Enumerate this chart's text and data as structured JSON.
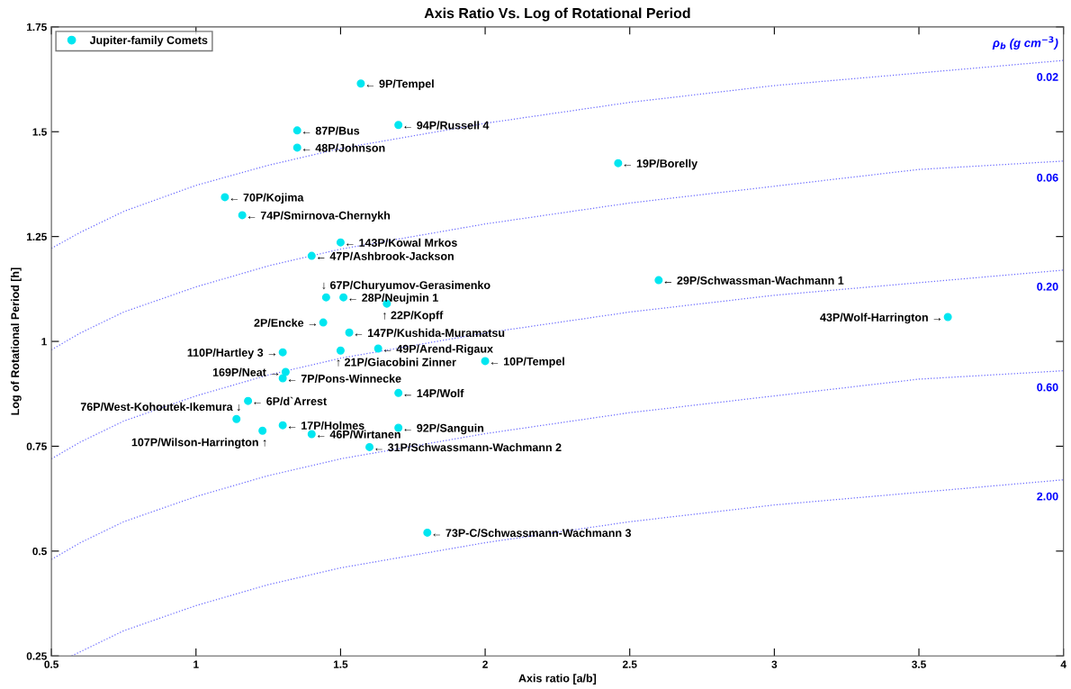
{
  "chart_data": {
    "type": "scatter",
    "title": "Axis Ratio Vs. Log of Rotational Period",
    "xlabel": "Axis ratio [a/b]",
    "ylabel": "Log of Rotational Period [h]",
    "xlim": [
      0.5,
      4
    ],
    "ylim": [
      0.25,
      1.75
    ],
    "xticks": [
      0.5,
      1,
      1.5,
      2,
      2.5,
      3,
      3.5,
      4
    ],
    "yticks": [
      0.25,
      0.5,
      0.75,
      1,
      1.25,
      1.5,
      1.75
    ],
    "grid": false,
    "legend": "top left",
    "series": [
      {
        "name": "Jupiter-family Comets",
        "marker": "circle",
        "color": "#00e6f0",
        "x": [
          1.57,
          1.35,
          1.7,
          1.35,
          2.46,
          1.1,
          1.16,
          1.5,
          1.4,
          2.6,
          1.45,
          1.51,
          1.66,
          3.6,
          1.44,
          1.53,
          1.3,
          1.5,
          1.63,
          2.0,
          1.31,
          1.3,
          1.7,
          1.18,
          1.14,
          1.3,
          1.7,
          1.23,
          1.4,
          1.6,
          1.8
        ],
        "values": [
          1.615,
          1.503,
          1.516,
          1.462,
          1.425,
          1.344,
          1.301,
          1.236,
          1.204,
          1.146,
          1.105,
          1.105,
          1.09,
          1.058,
          1.045,
          1.021,
          0.974,
          0.978,
          0.983,
          0.953,
          0.927,
          0.912,
          0.877,
          0.858,
          0.815,
          0.8,
          0.794,
          0.787,
          0.779,
          0.748,
          0.544
        ]
      },
      {
        "name": "0.02",
        "type": "line",
        "line_style": "dotted",
        "color": "#6b6bff",
        "x": [
          0.5,
          0.6,
          0.75,
          1,
          1.25,
          1.5,
          1.75,
          2,
          2.5,
          3,
          3.5,
          4
        ],
        "values": [
          1.222,
          1.26,
          1.31,
          1.372,
          1.42,
          1.46,
          1.49,
          1.52,
          1.57,
          1.61,
          1.64,
          1.67
        ]
      },
      {
        "name": "0.06",
        "type": "line",
        "line_style": "dotted",
        "color": "#6b6bff",
        "x": [
          0.5,
          0.6,
          0.75,
          1,
          1.25,
          1.5,
          1.75,
          2,
          2.5,
          3,
          3.5,
          4
        ],
        "values": [
          0.98,
          1.02,
          1.07,
          1.13,
          1.18,
          1.22,
          1.25,
          1.28,
          1.33,
          1.37,
          1.41,
          1.43
        ]
      },
      {
        "name": "0.20",
        "type": "line",
        "line_style": "dotted",
        "color": "#6b6bff",
        "x": [
          0.5,
          0.6,
          0.75,
          1,
          1.25,
          1.5,
          1.75,
          2,
          2.5,
          3,
          3.5,
          4
        ],
        "values": [
          0.72,
          0.76,
          0.81,
          0.87,
          0.92,
          0.96,
          0.99,
          1.02,
          1.07,
          1.11,
          1.14,
          1.17
        ]
      },
      {
        "name": "0.60",
        "type": "line",
        "line_style": "dotted",
        "color": "#6b6bff",
        "x": [
          0.5,
          0.6,
          0.75,
          1,
          1.25,
          1.5,
          1.75,
          2,
          2.5,
          3,
          3.5,
          4
        ],
        "values": [
          0.48,
          0.52,
          0.57,
          0.63,
          0.68,
          0.72,
          0.75,
          0.78,
          0.83,
          0.87,
          0.91,
          0.93
        ]
      },
      {
        "name": "2.00",
        "type": "line",
        "line_style": "dotted",
        "color": "#6b6bff",
        "x": [
          0.57,
          0.75,
          1,
          1.25,
          1.5,
          1.75,
          2,
          2.5,
          3,
          3.5,
          4
        ],
        "values": [
          0.25,
          0.31,
          0.37,
          0.42,
          0.46,
          0.49,
          0.52,
          0.57,
          0.61,
          0.64,
          0.67
        ]
      }
    ],
    "annotations": [
      "ρ$_{b}$ (g cm$^{−3}$)",
      {
        "text": "← 9P/Tempel",
        "x": 1.57,
        "y": 1.615
      },
      {
        "text": "← 87P/Bus",
        "x": 1.35,
        "y": 1.503
      },
      {
        "text": "← 94P/Russell 4",
        "x": 1.7,
        "y": 1.516
      },
      {
        "text": "← 48P/Johnson",
        "x": 1.35,
        "y": 1.462
      },
      {
        "text": "← 19P/Borelly",
        "x": 2.46,
        "y": 1.425
      },
      {
        "text": "← 70P/Kojima",
        "x": 1.1,
        "y": 1.344
      },
      {
        "text": "← 74P/Smirnova-Chernykh",
        "x": 1.16,
        "y": 1.301
      },
      {
        "text": "← 143P/Kowal Mrkos",
        "x": 1.5,
        "y": 1.236
      },
      {
        "text": "← 47P/Ashbrook-Jackson",
        "x": 1.4,
        "y": 1.204
      },
      {
        "text": "← 29P/Schwassman-Wachmann 1",
        "x": 2.6,
        "y": 1.146
      },
      {
        "text": "↓ 67P/Churyumov-Gerasimenko",
        "x": 1.45,
        "y": 1.105
      },
      {
        "text": "← 28P/Neujmin 1",
        "x": 1.51,
        "y": 1.105
      },
      {
        "text": "↑ 22P/Kopff",
        "x": 1.66,
        "y": 1.09
      },
      {
        "text": "43P/Wolf-Harrington →",
        "x": 3.6,
        "y": 1.058
      },
      {
        "text": "2P/Encke →",
        "x": 1.44,
        "y": 1.045
      },
      {
        "text": "← 147P/Kushida-Muramatsu",
        "x": 1.53,
        "y": 1.021
      },
      {
        "text": "110P/Hartley 3 →",
        "x": 1.3,
        "y": 0.974
      },
      {
        "text": "↑ 21P/Giacobini Zinner",
        "x": 1.5,
        "y": 0.978
      },
      {
        "text": "← 49P/Arend-Rigaux",
        "x": 1.63,
        "y": 0.983
      },
      {
        "text": "← 10P/Tempel",
        "x": 2.0,
        "y": 0.953
      },
      {
        "text": "169P/Neat →",
        "x": 1.31,
        "y": 0.927
      },
      {
        "text": "← 7P/Pons-Winnecke",
        "x": 1.3,
        "y": 0.912
      },
      {
        "text": "← 14P/Wolf",
        "x": 1.7,
        "y": 0.877
      },
      {
        "text": "← 6P/d`Arrest",
        "x": 1.18,
        "y": 0.858
      },
      {
        "text": "76P/West-Kohoutek-Ikemura ↓",
        "x": 1.14,
        "y": 0.815
      },
      {
        "text": "← 17P/Holmes",
        "x": 1.3,
        "y": 0.8
      },
      {
        "text": "← 92P/Sanguin",
        "x": 1.7,
        "y": 0.794
      },
      {
        "text": "107P/Wilson-Harrington ↑",
        "x": 1.23,
        "y": 0.787
      },
      {
        "text": "← 46P/Wirtanen",
        "x": 1.4,
        "y": 0.779
      },
      {
        "text": "← 31P/Schwassmann-Wachmann 2",
        "x": 1.6,
        "y": 0.748
      },
      {
        "text": "← 73P-C/Schwassmann-Wachmann 3",
        "x": 1.8,
        "y": 0.544
      }
    ]
  }
}
